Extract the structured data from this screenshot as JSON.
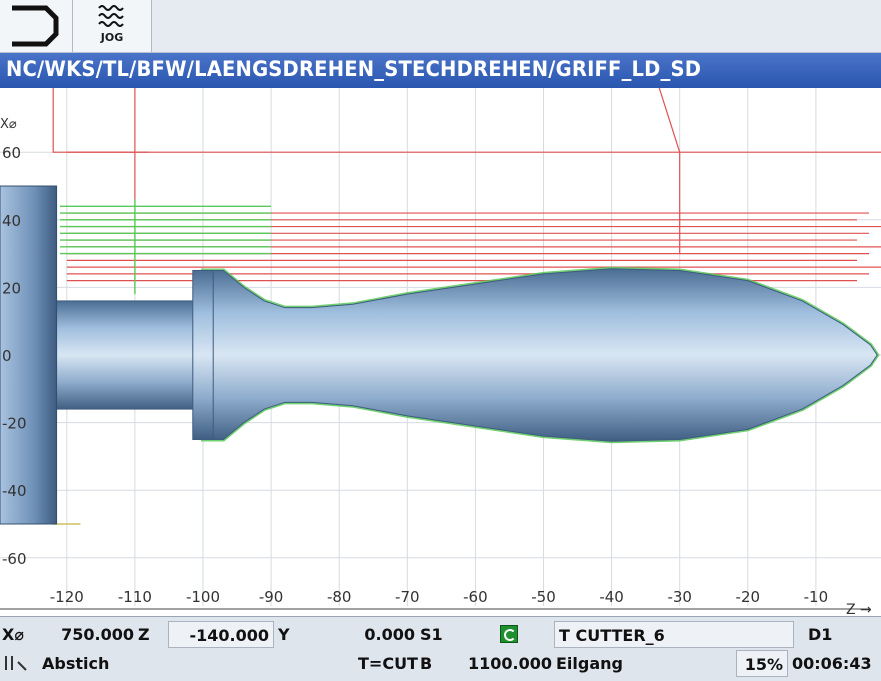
{
  "toolbar": {
    "buttons": [
      {
        "icon": "bracket-arrow-icon",
        "label": ""
      },
      {
        "icon": "jog-wave-icon",
        "label": "JOG"
      }
    ]
  },
  "program_path": "NC/WKS/TL/BFW/LAENGSDREHEN_STECHDREHEN/GRIFF_LD_SD",
  "plot": {
    "x_axis_label": "Z",
    "y_axis_label": "X⌀",
    "x_ticks": [
      "-120",
      "-110",
      "-100",
      "-90",
      "-80",
      "-70",
      "-60",
      "-50",
      "-40",
      "-30",
      "-20",
      "-10"
    ],
    "y_ticks": [
      "60",
      "40",
      "20",
      "0",
      "-20",
      "-40",
      "-60"
    ],
    "colors": {
      "rapid_path": "#e05050",
      "feed_path": "#58c858",
      "part": "#7aa2c8",
      "grid": "#d6dbe2"
    }
  },
  "status": {
    "x_label": "X⌀",
    "x_value": "750.000",
    "z_label": "Z",
    "z_value": "-140.000",
    "y_label": "Y",
    "y_value": "0.000",
    "s_label": "S1",
    "tool": "T CUTTER_6",
    "d_label": "D1",
    "mode": "Abstich",
    "t_label": "T=CUT",
    "b_label": "B",
    "feed_value": "1100.000",
    "feed_type": "Eilgang",
    "percent": "15%",
    "time": "00:06:43"
  }
}
